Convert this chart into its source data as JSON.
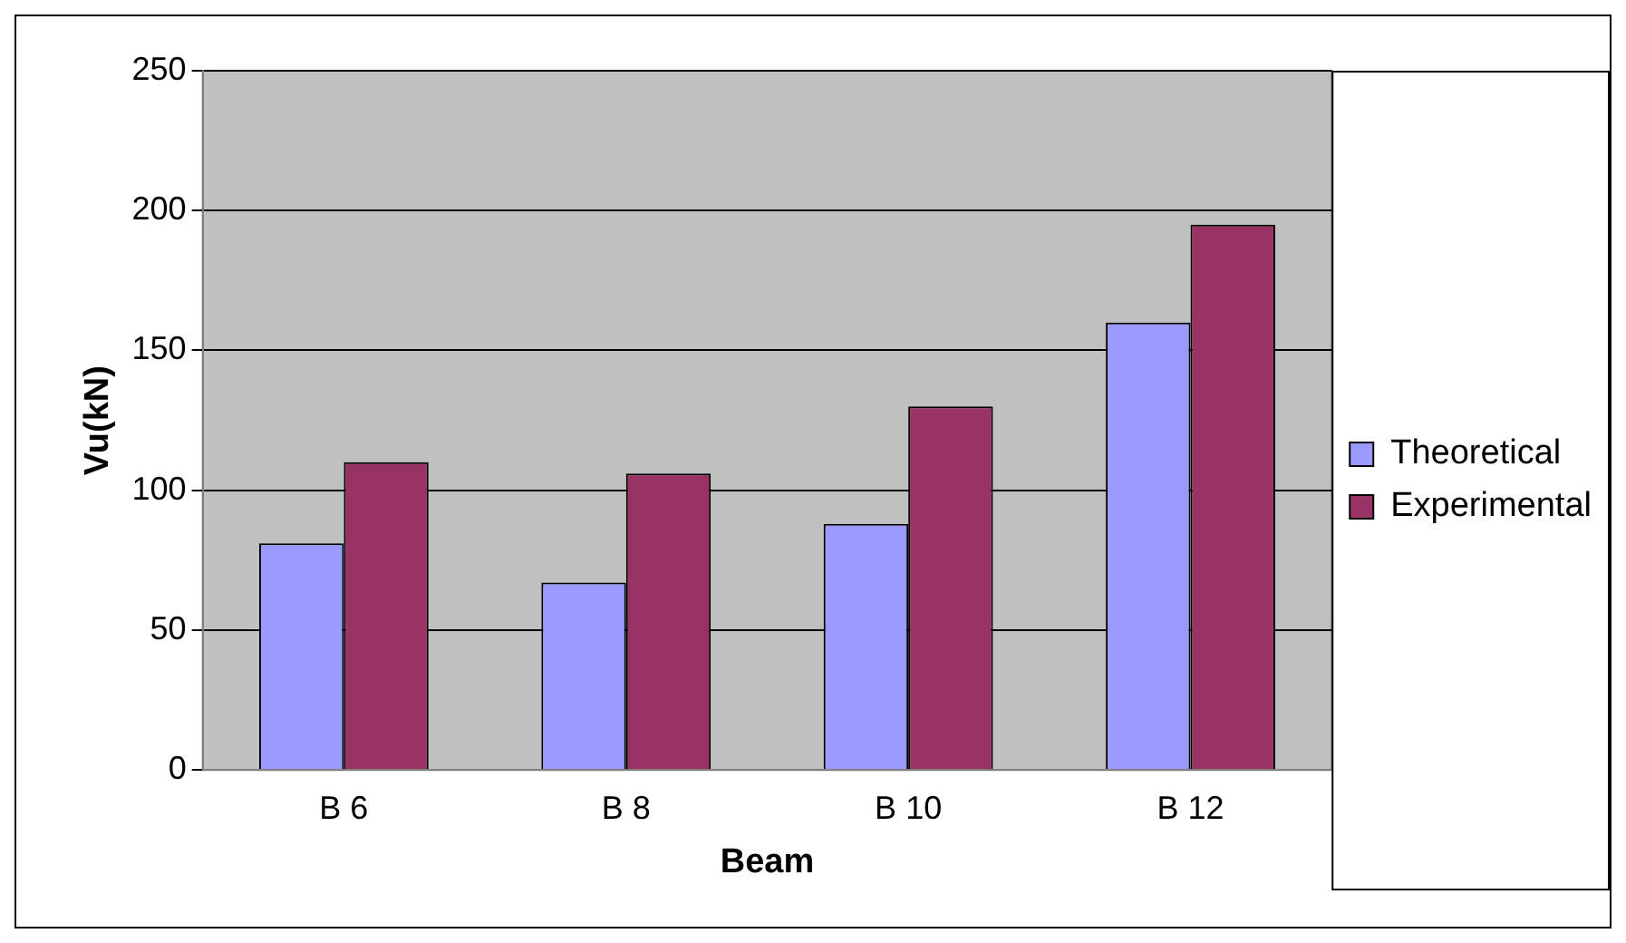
{
  "chart_data": {
    "type": "bar",
    "xlabel": "Beam",
    "ylabel": "Vu(kN)",
    "categories": [
      "B 6",
      "B 8",
      "B 10",
      "B 12"
    ],
    "series": [
      {
        "name": "Theoretical",
        "color": "#9999ff",
        "values": [
          81,
          67,
          88,
          160
        ]
      },
      {
        "name": "Experimental",
        "color": "#993366",
        "values": [
          110,
          106,
          130,
          195
        ]
      }
    ],
    "ylim": [
      0,
      250
    ],
    "yticks": [
      0,
      50,
      100,
      150,
      200,
      250
    ],
    "grid": "y",
    "legend": "right"
  }
}
